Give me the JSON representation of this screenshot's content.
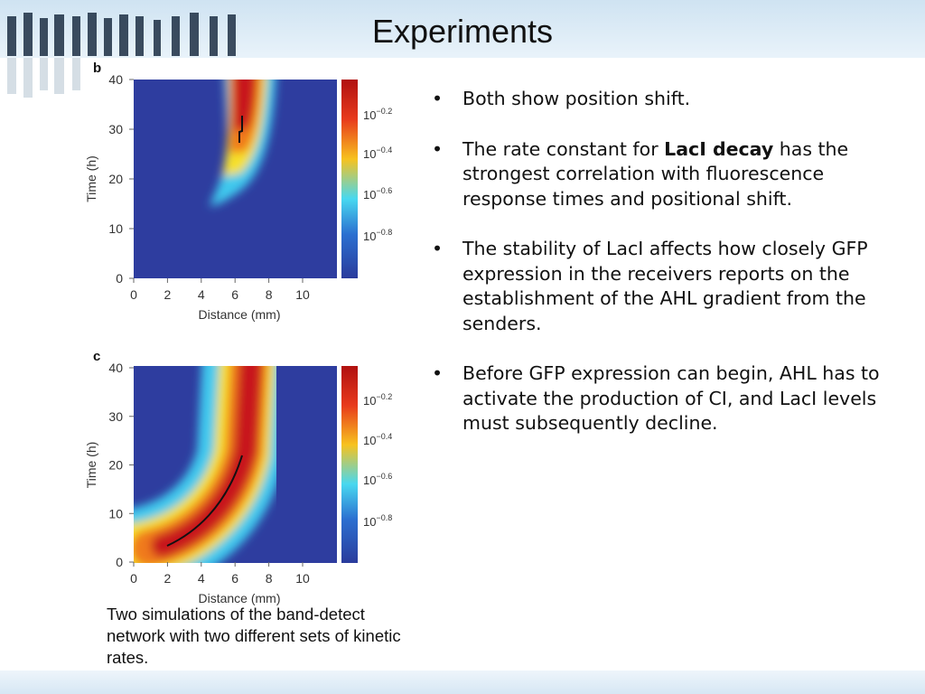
{
  "title": "Experiments",
  "figure": {
    "panels": [
      {
        "label": "b",
        "xlabel": "Distance (mm)",
        "ylabel": "Time (h)",
        "xticks": [
          "0",
          "2",
          "4",
          "6",
          "8",
          "10"
        ],
        "yticks": [
          "0",
          "10",
          "20",
          "30",
          "40"
        ],
        "colorbar": [
          {
            "base": "10",
            "exponent": "−0.2"
          },
          {
            "base": "10",
            "exponent": "−0.4"
          },
          {
            "base": "10",
            "exponent": "−0.6"
          },
          {
            "base": "10",
            "exponent": "−0.8"
          }
        ]
      },
      {
        "label": "c",
        "xlabel": "Distance (mm)",
        "ylabel": "Time (h)",
        "xticks": [
          "0",
          "2",
          "4",
          "6",
          "8",
          "10"
        ],
        "yticks": [
          "0",
          "10",
          "20",
          "30",
          "40"
        ],
        "colorbar": [
          {
            "base": "10",
            "exponent": "−0.2"
          },
          {
            "base": "10",
            "exponent": "−0.4"
          },
          {
            "base": "10",
            "exponent": "−0.6"
          },
          {
            "base": "10",
            "exponent": "−0.8"
          }
        ]
      }
    ],
    "caption": "Two simulations of the band-detect network with two different sets of kinetic rates."
  },
  "bullets": [
    [
      "Both show position shift."
    ],
    [
      "The rate constant for ",
      "LacI decay",
      " has the strongest correlation with fluorescence response times and positional shift."
    ],
    [
      "The stability of LacI affects how closely GFP expression in the receivers reports on the establishment of the AHL gradient from the senders."
    ],
    [
      "Before GFP expression can begin, AHL has to activate the production of CI, and LacI levels must subsequently decline."
    ]
  ]
}
